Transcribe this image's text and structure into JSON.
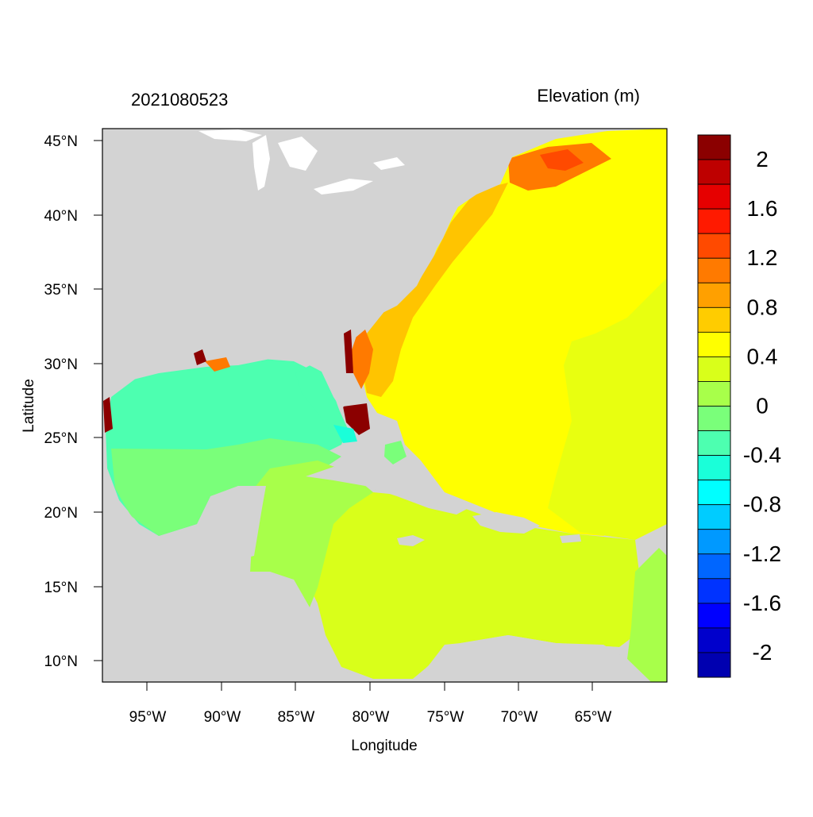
{
  "title_left": "2021080523",
  "title_right": "Elevation (m)",
  "map": {
    "xlabel": "Longitude",
    "ylabel": "Latitude",
    "lon_ticks": [
      "95°W",
      "90°W",
      "85°W",
      "80°W",
      "75°W",
      "70°W",
      "65°W"
    ],
    "lat_ticks": [
      "45°N",
      "40°N",
      "35°N",
      "30°N",
      "25°N",
      "20°N",
      "15°N",
      "10°N"
    ],
    "land_color": "#d3d3d3"
  },
  "colorbar": {
    "labels": [
      "2",
      "1.6",
      "1.2",
      "0.8",
      "0.4",
      "0",
      "-0.4",
      "-0.8",
      "-1.2",
      "-1.6",
      "-2"
    ],
    "colors": [
      "#8b0000",
      "#be0000",
      "#e60000",
      "#ff1a00",
      "#ff4a00",
      "#ff7a00",
      "#ffa000",
      "#ffcc00",
      "#ffff00",
      "#d9ff1a",
      "#a8ff4a",
      "#7aff7a",
      "#4dffb0",
      "#1affd9",
      "#00ffff",
      "#00ccff",
      "#0099ff",
      "#0066ff",
      "#0033ff",
      "#0000ff",
      "#0000cc",
      "#0000b0"
    ]
  },
  "chart_data": {
    "type": "heatmap",
    "title": "2021080523",
    "subtitle": "Elevation (m)",
    "xlabel": "Longitude",
    "ylabel": "Latitude",
    "xlim": [
      -98,
      -60
    ],
    "ylim": [
      8.5,
      46
    ],
    "units": "m",
    "colorbar_range": [
      -2.2,
      2.2
    ],
    "colorbar_ticks": [
      2,
      1.6,
      1.2,
      0.8,
      0.4,
      0,
      -0.4,
      -0.8,
      -1.2,
      -1.6,
      -2
    ]
  }
}
